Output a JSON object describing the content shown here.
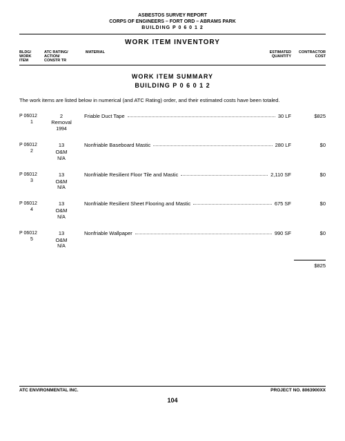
{
  "header": {
    "line1": "ASBESTOS SURVEY REPORT",
    "line2": "CORPS OF ENGINEERS – FORT ORD – ABRAMS PARK",
    "line3": "BUILDING   P 0 6 0 1 2"
  },
  "title": "WORK ITEM INVENTORY",
  "columns": {
    "c1": "BLDG/\nWORK\nITEM",
    "c2": "ATC RATING/\nACTION/\nCONSTR TR",
    "c3": "MATERIAL",
    "c4": "ESTIMATED\nQUANTITY",
    "c5": "CONTRACTOR\nCOST"
  },
  "subtitle": {
    "line1": "WORK ITEM SUMMARY",
    "line2": "BUILDING   P 0 6 0 1 2"
  },
  "intro": "The work items are listed below in numerical (and ATC Rating) order, and their estimated costs have been totaled.",
  "rows": [
    {
      "bldg": "P 06012",
      "item": "1",
      "rating": "2",
      "action": "Removal",
      "constr": "1994",
      "material": "Friable Duct Tape",
      "qty": "30 LF",
      "cost": "$825"
    },
    {
      "bldg": "P 06012",
      "item": "2",
      "rating": "13",
      "action": "O&M",
      "constr": "N/A",
      "material": "Nonfriable Baseboard Mastic",
      "qty": "280 LF",
      "cost": "$0"
    },
    {
      "bldg": "P 06012",
      "item": "3",
      "rating": "13",
      "action": "O&M",
      "constr": "N/A",
      "material": "Nonfriable Resilient Floor Tile and Mastic",
      "qty": "2,110 SF",
      "cost": "$0"
    },
    {
      "bldg": "P 06012",
      "item": "4",
      "rating": "13",
      "action": "O&M",
      "constr": "N/A",
      "material": "Nonfriable Resilient Sheet Flooring and Mastic",
      "qty": "675 SF",
      "cost": "$0"
    },
    {
      "bldg": "P 06012",
      "item": "5",
      "rating": "13",
      "action": "O&M",
      "constr": "N/A",
      "material": "Nonfriable Wallpaper",
      "qty": "990 SF",
      "cost": "$0"
    }
  ],
  "total": "$825",
  "footer": {
    "left": "ATC ENVIRONMENTAL INC.",
    "right": "PROJECT NO. 8063900XX"
  },
  "pagenum": "104"
}
